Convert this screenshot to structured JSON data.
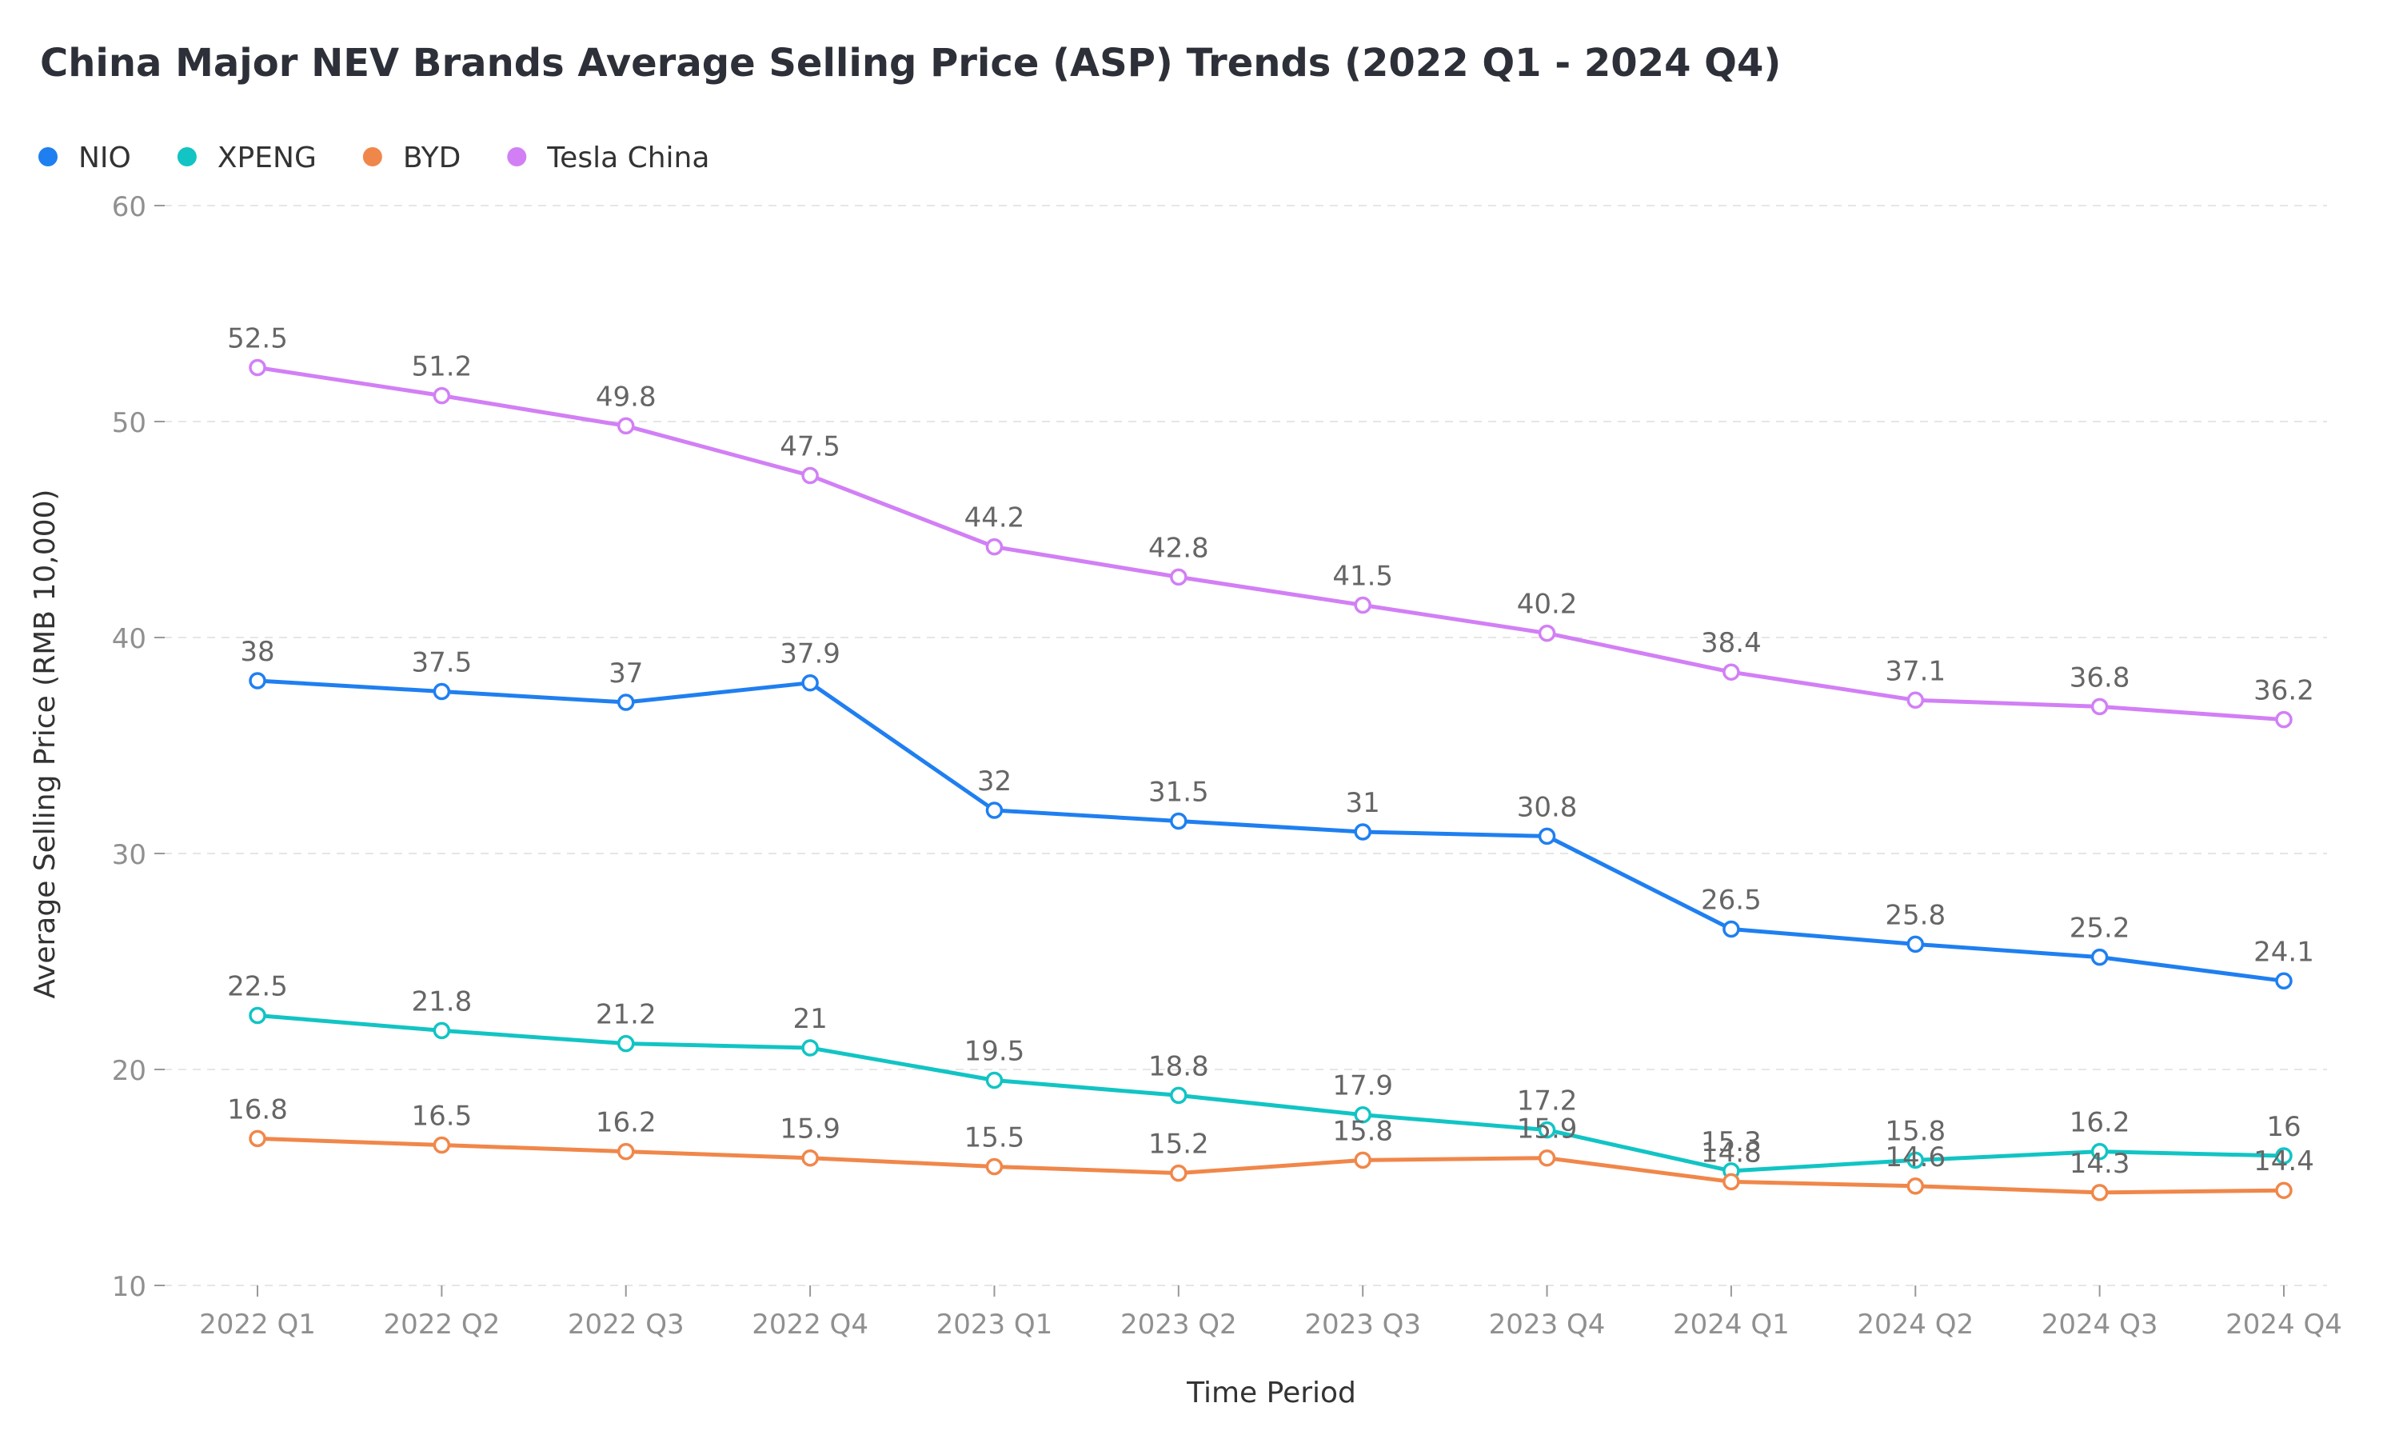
{
  "chart_data": {
    "type": "line",
    "title": "China Major NEV Brands Average Selling Price (ASP) Trends (2022 Q1 - 2024 Q4)",
    "xlabel": "Time Period",
    "ylabel": "Average Selling Price (RMB 10,000)",
    "ylim": [
      10,
      60
    ],
    "yticks": [
      "10",
      "20",
      "30",
      "40",
      "50",
      "60"
    ],
    "grid": true,
    "legend_position": "top-left",
    "categories": [
      "2022 Q1",
      "2022 Q2",
      "2022 Q3",
      "2022 Q4",
      "2023 Q1",
      "2023 Q2",
      "2023 Q3",
      "2023 Q4",
      "2024 Q1",
      "2024 Q2",
      "2024 Q3",
      "2024 Q4"
    ],
    "series": [
      {
        "name": "NIO",
        "color": "#1f7ff0",
        "values": [
          38,
          37.5,
          37,
          37.9,
          32,
          31.5,
          31,
          30.8,
          26.5,
          25.8,
          25.2,
          24.1
        ],
        "labels": [
          "38",
          "37.5",
          "37",
          "37.9",
          "32",
          "31.5",
          "31",
          "30.8",
          "26.5",
          "25.8",
          "25.2",
          "24.1"
        ]
      },
      {
        "name": "XPENG",
        "color": "#12c4c4",
        "values": [
          22.5,
          21.8,
          21.2,
          21,
          19.5,
          18.8,
          17.9,
          17.2,
          15.3,
          15.8,
          16.2,
          16
        ],
        "labels": [
          "22.5",
          "21.8",
          "21.2",
          "21",
          "19.5",
          "18.8",
          "17.9",
          "17.2",
          "15.3",
          "15.8",
          "16.2",
          "16"
        ]
      },
      {
        "name": "BYD",
        "color": "#f0874a",
        "values": [
          16.8,
          16.5,
          16.2,
          15.9,
          15.5,
          15.2,
          15.8,
          15.9,
          14.8,
          14.6,
          14.3,
          14.4
        ],
        "labels": [
          "16.8",
          "16.5",
          "16.2",
          "15.9",
          "15.5",
          "15.2",
          "15.8",
          "15.9",
          "14.8",
          "14.6",
          "14.3",
          "14.4"
        ]
      },
      {
        "name": "Tesla China",
        "color": "#d27ff5",
        "values": [
          52.5,
          51.2,
          49.8,
          47.5,
          44.2,
          42.8,
          41.5,
          40.2,
          38.4,
          37.1,
          36.8,
          36.2
        ],
        "labels": [
          "52.5",
          "51.2",
          "49.8",
          "47.5",
          "44.2",
          "42.8",
          "41.5",
          "40.2",
          "38.4",
          "37.1",
          "36.8",
          "36.2"
        ]
      }
    ]
  }
}
